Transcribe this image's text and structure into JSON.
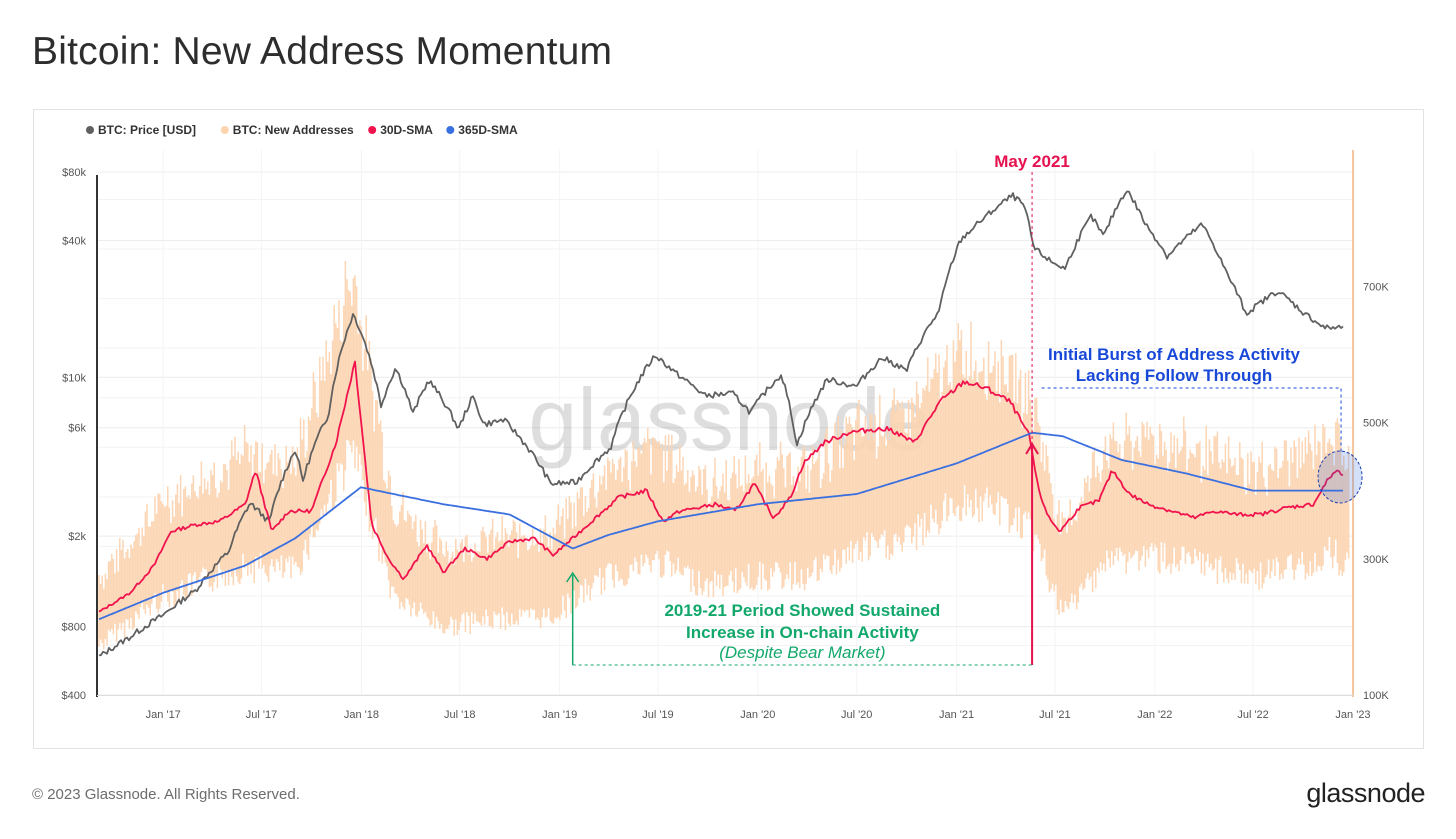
{
  "page": {
    "title": "Bitcoin: New Address Momentum",
    "copyright": "© 2023 Glassnode. All Rights Reserved.",
    "logo_text": "glassnode",
    "watermark": "glassnode"
  },
  "colors": {
    "price": "#606060",
    "new_addresses": "#fcd4b0",
    "sma30": "#f0134d",
    "sma365": "#3a6fe0",
    "green_annotation": "#12a86b",
    "blue_annotation": "#1748d8",
    "red_annotation": "#e6124f"
  },
  "chart_data": {
    "type": "line",
    "x_range": [
      "2016-09-01",
      "2023-01-01"
    ],
    "x_ticks": [
      {
        "date": "2017-01-01",
        "label": "Jan '17"
      },
      {
        "date": "2017-07-01",
        "label": "Jul '17"
      },
      {
        "date": "2018-01-01",
        "label": "Jan '18"
      },
      {
        "date": "2018-07-01",
        "label": "Jul '18"
      },
      {
        "date": "2019-01-01",
        "label": "Jan '19"
      },
      {
        "date": "2019-07-01",
        "label": "Jul '19"
      },
      {
        "date": "2020-01-01",
        "label": "Jan '20"
      },
      {
        "date": "2020-07-01",
        "label": "Jul '20"
      },
      {
        "date": "2021-01-01",
        "label": "Jan '21"
      },
      {
        "date": "2021-07-01",
        "label": "Jul '21"
      },
      {
        "date": "2022-01-01",
        "label": "Jan '22"
      },
      {
        "date": "2022-07-01",
        "label": "Jul '22"
      },
      {
        "date": "2023-01-01",
        "label": "Jan '23"
      }
    ],
    "y_left": {
      "scale": "log",
      "range": [
        400,
        100000
      ],
      "ticks": [
        {
          "value": 400,
          "label": "$400"
        },
        {
          "value": 800,
          "label": "$800"
        },
        {
          "value": 2000,
          "label": "$2k"
        },
        {
          "value": 6000,
          "label": "$6k"
        },
        {
          "value": 10000,
          "label": "$10k"
        },
        {
          "value": 40000,
          "label": "$40k"
        },
        {
          "value": 80000,
          "label": "$80k"
        }
      ]
    },
    "y_right": {
      "scale": "linear",
      "range": [
        100000,
        900000
      ],
      "ticks": [
        {
          "value": 100000,
          "label": "100K"
        },
        {
          "value": 300000,
          "label": "300K"
        },
        {
          "value": 500000,
          "label": "500K"
        },
        {
          "value": 700000,
          "label": "700K"
        }
      ]
    },
    "legend": {
      "placement": "top-left",
      "items": [
        {
          "label": "BTC: Price [USD]",
          "color": "#606060"
        },
        {
          "label": "BTC: New Addresses",
          "color": "#fcd4b0"
        },
        {
          "label": "30D-SMA",
          "color": "#f0134d"
        },
        {
          "label": "365D-SMA",
          "color": "#3a6fe0"
        }
      ]
    },
    "series": [
      {
        "name": "BTC: Price [USD]",
        "axis": "left",
        "x": [
          "2016-09-01",
          "2016-11-01",
          "2017-01-01",
          "2017-03-01",
          "2017-05-01",
          "2017-06-10",
          "2017-07-15",
          "2017-09-01",
          "2017-09-15",
          "2017-11-01",
          "2017-12-17",
          "2018-02-06",
          "2018-03-05",
          "2018-04-06",
          "2018-05-05",
          "2018-06-29",
          "2018-07-25",
          "2018-08-14",
          "2018-09-20",
          "2018-11-20",
          "2018-12-15",
          "2019-02-01",
          "2019-04-05",
          "2019-06-26",
          "2019-08-01",
          "2019-09-25",
          "2019-11-15",
          "2019-12-18",
          "2020-02-13",
          "2020-03-13",
          "2020-05-08",
          "2020-06-30",
          "2020-08-17",
          "2020-10-01",
          "2020-11-30",
          "2021-01-08",
          "2021-02-20",
          "2021-04-14",
          "2021-05-05",
          "2021-05-23",
          "2021-06-22",
          "2021-07-20",
          "2021-09-06",
          "2021-09-29",
          "2021-11-10",
          "2021-12-15",
          "2022-01-24",
          "2022-03-29",
          "2022-05-12",
          "2022-06-18",
          "2022-08-15",
          "2022-10-01",
          "2022-11-09",
          "2022-12-31"
        ],
        "values": [
          580,
          720,
          900,
          1150,
          1700,
          2800,
          2300,
          4800,
          3500,
          6800,
          19000,
          7500,
          11000,
          6900,
          9700,
          5900,
          8200,
          6200,
          6500,
          4300,
          3400,
          3450,
          4900,
          12500,
          10500,
          8300,
          8500,
          7000,
          10300,
          5000,
          9800,
          9100,
          12200,
          10700,
          19500,
          40000,
          50000,
          63000,
          57000,
          37000,
          32500,
          30000,
          51000,
          41500,
          67000,
          47000,
          34000,
          47000,
          29000,
          19000,
          24000,
          19300,
          16500,
          16600
        ]
      },
      {
        "name": "BTC: New Addresses",
        "axis": "right",
        "x": [
          "2016-09-01",
          "2017-01-01",
          "2017-06-01",
          "2017-09-01",
          "2017-12-15",
          "2018-03-01",
          "2018-06-01",
          "2018-09-01",
          "2018-12-15",
          "2019-04-01",
          "2019-07-01",
          "2019-10-01",
          "2020-01-01",
          "2020-04-01",
          "2020-07-01",
          "2020-10-01",
          "2021-01-10",
          "2021-04-01",
          "2021-05-25",
          "2021-07-15",
          "2021-10-01",
          "2022-01-01",
          "2022-04-01",
          "2022-07-01",
          "2022-10-01",
          "2022-11-20",
          "2022-12-31"
        ],
        "values": [
          230000,
          330000,
          390000,
          380000,
          620000,
          330000,
          270000,
          285000,
          290000,
          370000,
          400000,
          350000,
          370000,
          370000,
          420000,
          440000,
          520000,
          500000,
          450000,
          290000,
          400000,
          410000,
          390000,
          370000,
          390000,
          420000,
          380000
        ]
      },
      {
        "name": "30D-SMA",
        "axis": "right",
        "x": [
          "2016-09-01",
          "2016-11-01",
          "2016-12-15",
          "2017-01-15",
          "2017-03-01",
          "2017-04-15",
          "2017-06-01",
          "2017-06-20",
          "2017-07-20",
          "2017-08-20",
          "2017-10-01",
          "2017-11-15",
          "2017-12-20",
          "2018-01-20",
          "2018-02-20",
          "2018-03-20",
          "2018-05-01",
          "2018-06-01",
          "2018-07-10",
          "2018-08-20",
          "2018-10-01",
          "2018-11-15",
          "2018-12-20",
          "2019-01-25",
          "2019-03-15",
          "2019-04-20",
          "2019-06-10",
          "2019-07-10",
          "2019-08-10",
          "2019-09-15",
          "2019-10-15",
          "2019-11-20",
          "2019-12-25",
          "2020-01-30",
          "2020-03-01",
          "2020-03-25",
          "2020-05-01",
          "2020-06-15",
          "2020-08-01",
          "2020-09-01",
          "2020-10-15",
          "2020-12-01",
          "2021-01-15",
          "2021-02-25",
          "2021-04-10",
          "2021-05-15",
          "2021-06-01",
          "2021-06-20",
          "2021-07-10",
          "2021-08-15",
          "2021-09-20",
          "2021-10-15",
          "2021-11-15",
          "2021-12-20",
          "2022-02-01",
          "2022-03-15",
          "2022-04-20",
          "2022-06-01",
          "2022-07-15",
          "2022-09-01",
          "2022-10-20",
          "2022-11-15",
          "2022-12-01",
          "2022-12-31"
        ],
        "values": [
          220000,
          250000,
          290000,
          340000,
          350000,
          355000,
          380000,
          430000,
          340000,
          370000,
          370000,
          470000,
          590000,
          350000,
          300000,
          270000,
          320000,
          280000,
          315000,
          300000,
          325000,
          330000,
          305000,
          330000,
          365000,
          390000,
          400000,
          355000,
          370000,
          375000,
          380000,
          370000,
          410000,
          360000,
          390000,
          440000,
          470000,
          485000,
          490000,
          490000,
          470000,
          530000,
          560000,
          550000,
          530000,
          480000,
          400000,
          360000,
          340000,
          375000,
          385000,
          430000,
          395000,
          380000,
          370000,
          360000,
          370000,
          365000,
          365000,
          375000,
          380000,
          415000,
          430000,
          410000
        ]
      },
      {
        "name": "365D-SMA",
        "axis": "right",
        "x": [
          "2016-09-01",
          "2017-01-01",
          "2017-06-01",
          "2017-09-01",
          "2017-12-31",
          "2018-03-01",
          "2018-06-01",
          "2018-10-01",
          "2019-01-25",
          "2019-04-01",
          "2019-07-01",
          "2020-01-01",
          "2020-07-01",
          "2021-01-01",
          "2021-05-20",
          "2021-07-15",
          "2021-11-01",
          "2022-03-01",
          "2022-07-01",
          "2022-10-01",
          "2022-12-31"
        ],
        "values": [
          210000,
          250000,
          290000,
          330000,
          405000,
          395000,
          380000,
          365000,
          315000,
          335000,
          355000,
          380000,
          395000,
          440000,
          485000,
          480000,
          445000,
          425000,
          400000,
          400000,
          400000
        ]
      }
    ],
    "annotations": [
      {
        "text": "May 2021",
        "date": "2021-05-20",
        "color": "#e6124f"
      },
      {
        "lines": [
          "Initial Burst of Address Activity",
          "Lacking Follow Through"
        ],
        "date_from": "2021-06-01",
        "date_to": "2022-12-10",
        "color": "#1748d8"
      },
      {
        "lines": [
          "2019-21 Period Showed Sustained",
          "Increase in On-chain Activity"
        ],
        "subtext": "(Despite Bear Market)",
        "date_from": "2019-01-25",
        "date_to": "2021-05-20",
        "color": "#12a86b"
      }
    ]
  }
}
